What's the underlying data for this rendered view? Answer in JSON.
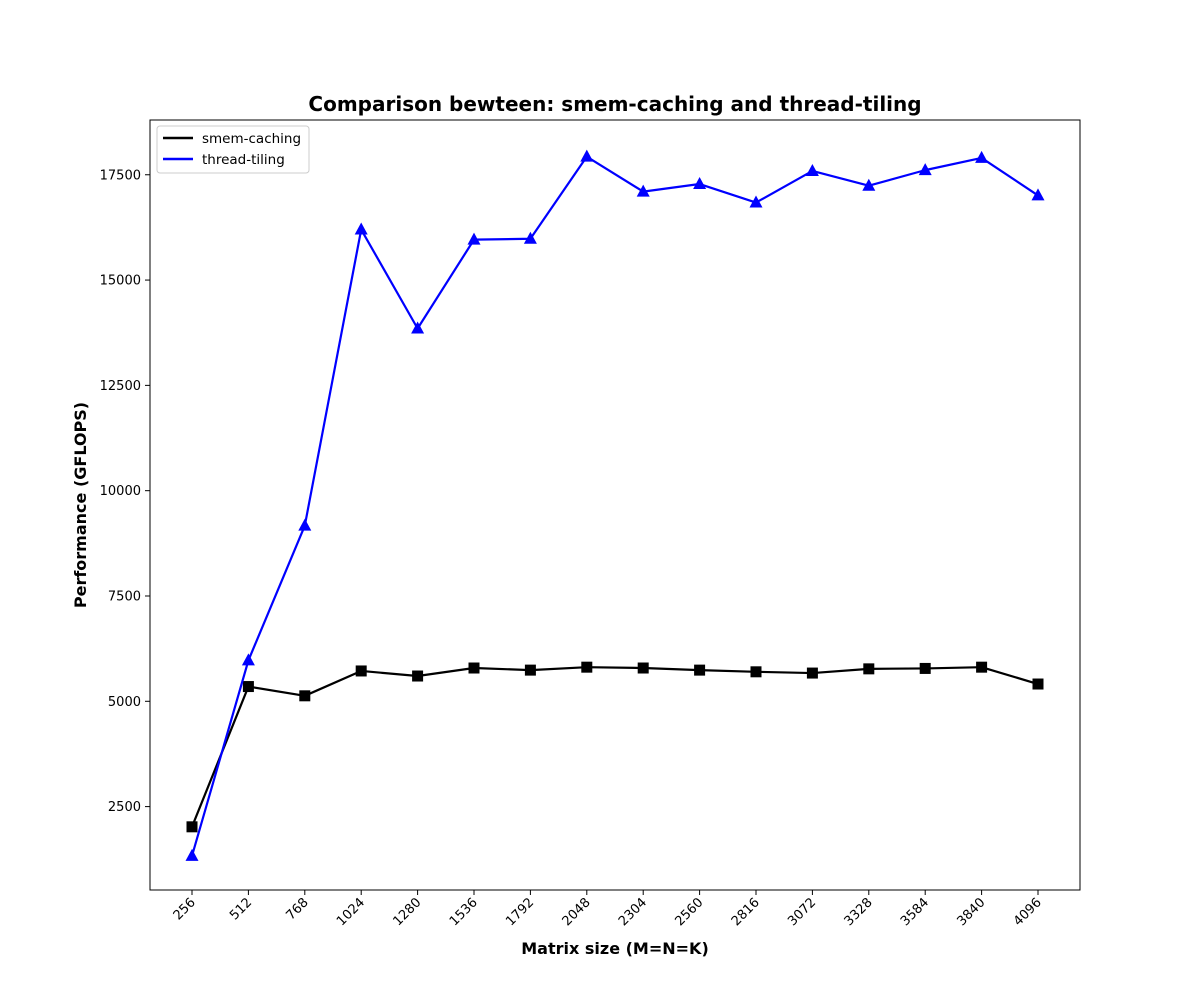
{
  "chart_data": {
    "type": "line",
    "title": "Comparison bewteen: smem-caching and thread-tiling",
    "xlabel": "Matrix size (M=N=K)",
    "ylabel": "Performance (GFLOPS)",
    "categories": [
      "256",
      "512",
      "768",
      "1024",
      "1280",
      "1536",
      "1792",
      "2048",
      "2304",
      "2560",
      "2816",
      "3072",
      "3328",
      "3584",
      "3840",
      "4096"
    ],
    "yticks": [
      2500,
      5000,
      7500,
      10000,
      12500,
      15000,
      17500
    ],
    "ytick_labels": [
      "2500",
      "5000",
      "7500",
      "10000",
      "12500",
      "15000",
      "17500"
    ],
    "ylim": [
      520,
      18800
    ],
    "grid": false,
    "legend_position": "top-left",
    "series": [
      {
        "name": "smem-caching",
        "color": "#000000",
        "marker": "square",
        "values": [
          2020,
          5350,
          5130,
          5720,
          5600,
          5790,
          5740,
          5810,
          5790,
          5740,
          5700,
          5670,
          5770,
          5780,
          5810,
          5410
        ]
      },
      {
        "name": "thread-tiling",
        "color": "#0000ff",
        "marker": "triangle",
        "values": [
          1330,
          5970,
          9170,
          16200,
          13850,
          15960,
          15980,
          17930,
          17100,
          17280,
          16840,
          17590,
          17240,
          17610,
          17900,
          17010
        ]
      }
    ]
  }
}
